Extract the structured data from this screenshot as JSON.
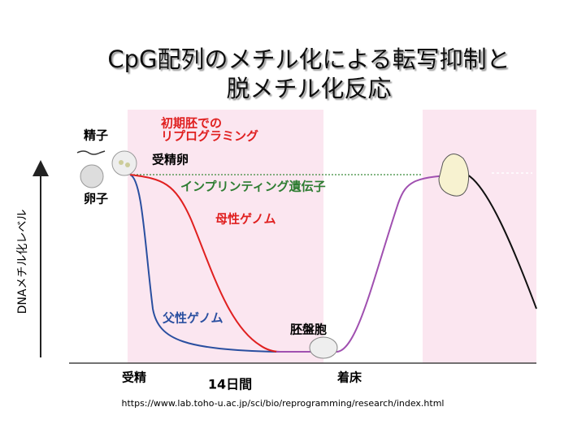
{
  "title": {
    "line1": "CpG配列のメチル化による転写抑制と",
    "line2": "脱メチル化反応"
  },
  "diagram": {
    "y_axis_label": "DNAメチル化レベル",
    "x_labels": {
      "fertilization": "受精",
      "implantation": "着床",
      "period": "14日間"
    },
    "cells": {
      "sperm": "精子",
      "egg": "卵子",
      "zygote": "受精卵",
      "blastocyst": "胚盤胞"
    },
    "reprogramming": {
      "line1": "初期胚での",
      "line2": "リプログラミング"
    },
    "curves": {
      "imprinting": "インプリンティング遺伝子",
      "maternal": "母性ゲノム",
      "paternal": "父性ゲノム"
    }
  },
  "source": "https://www.lab.toho-u.ac.jp/sci/bio/reprogramming/research/index.html"
}
